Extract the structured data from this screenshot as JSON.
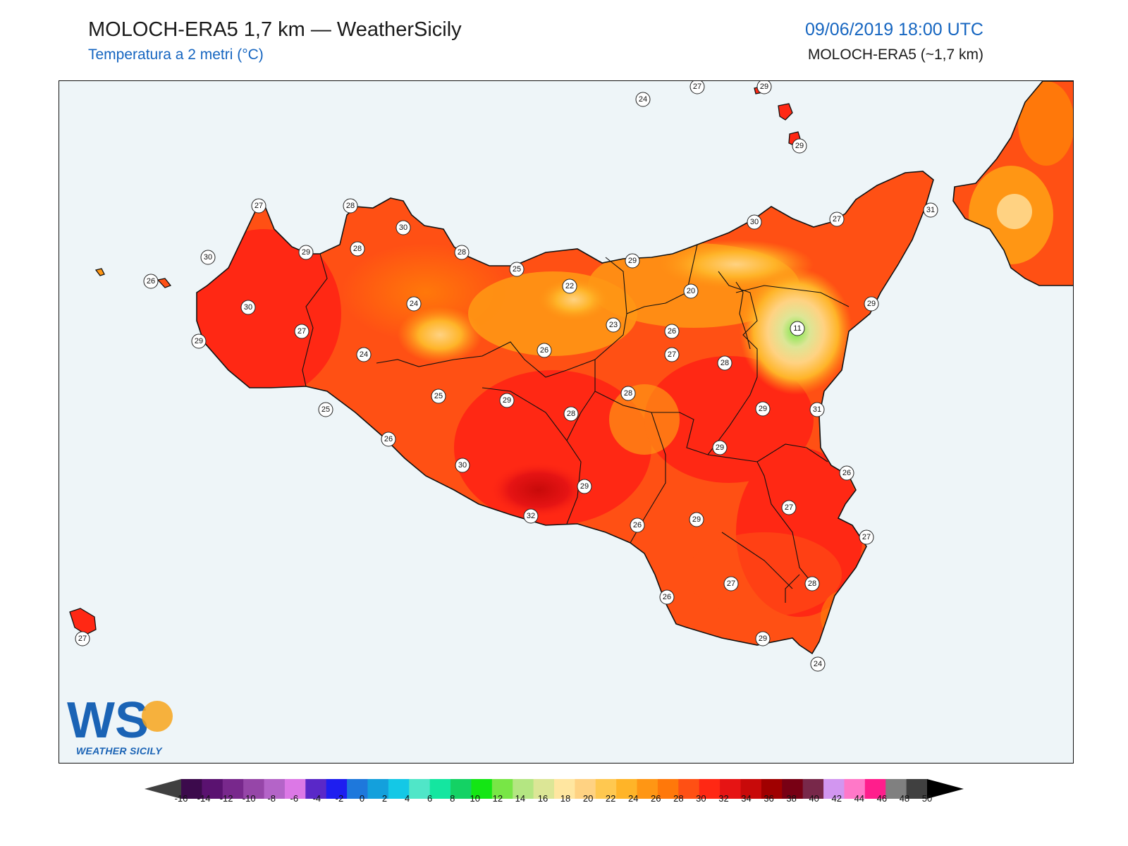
{
  "header": {
    "title": "MOLOCH-ERA5 1,7 km — WeatherSicily",
    "subtitle": "Temperatura a 2 metri (°C)",
    "datetime": "09/06/2019 18:00 UTC",
    "model": "MOLOCH-ERA5 (~1,7 km)"
  },
  "logo": {
    "letters": "WS",
    "caption": "WEATHER SICILY"
  },
  "colorbar": {
    "ticks": [
      "-16",
      "-14",
      "-12",
      "-10",
      "-8",
      "-6",
      "-4",
      "-2",
      "0",
      "2",
      "4",
      "6",
      "8",
      "10",
      "12",
      "14",
      "16",
      "18",
      "20",
      "22",
      "24",
      "26",
      "28",
      "30",
      "32",
      "34",
      "36",
      "38",
      "40",
      "42",
      "44",
      "46",
      "48",
      "50"
    ],
    "colors": [
      "#3c0a4c",
      "#5a1270",
      "#78288c",
      "#9646a8",
      "#b464c8",
      "#dc78e6",
      "#5a28c8",
      "#1e1ef0",
      "#1e78dc",
      "#14a0dc",
      "#14c8e6",
      "#50e6c8",
      "#14e6a0",
      "#14d264",
      "#14e614",
      "#78e646",
      "#b4e682",
      "#dce696",
      "#ffe6a0",
      "#ffd282",
      "#ffc850",
      "#ffb428",
      "#ff9614",
      "#ff780a",
      "#ff5014",
      "#ff2814",
      "#e61414",
      "#c80a0a",
      "#a00000",
      "#780014",
      "#78284a",
      "#d296f0",
      "#ff78c8",
      "#ff1e8c",
      "#808080",
      "#404040"
    ],
    "low_color": "#404040",
    "high_color": "#000000",
    "land_colors": {
      "hot": "#ff2814",
      "warm": "#ff5014",
      "mild": "#ff9614",
      "cool": "#ffc850",
      "cold": "#dce696",
      "peak": "#78e646",
      "sea": "#eef5f8"
    }
  },
  "station_labels": [
    "29",
    "27",
    "24",
    "29",
    "28",
    "27",
    "28",
    "30",
    "29",
    "26",
    "30",
    "28",
    "25",
    "22",
    "29",
    "30",
    "27",
    "31",
    "20",
    "29",
    "24",
    "30",
    "27",
    "29",
    "26",
    "11",
    "24",
    "23",
    "26",
    "27",
    "28",
    "29",
    "25",
    "28",
    "29",
    "28",
    "25",
    "31",
    "29",
    "26",
    "27",
    "26",
    "30",
    "29",
    "26",
    "27",
    "32",
    "29",
    "26",
    "27",
    "28",
    "24",
    "29",
    "27"
  ]
}
